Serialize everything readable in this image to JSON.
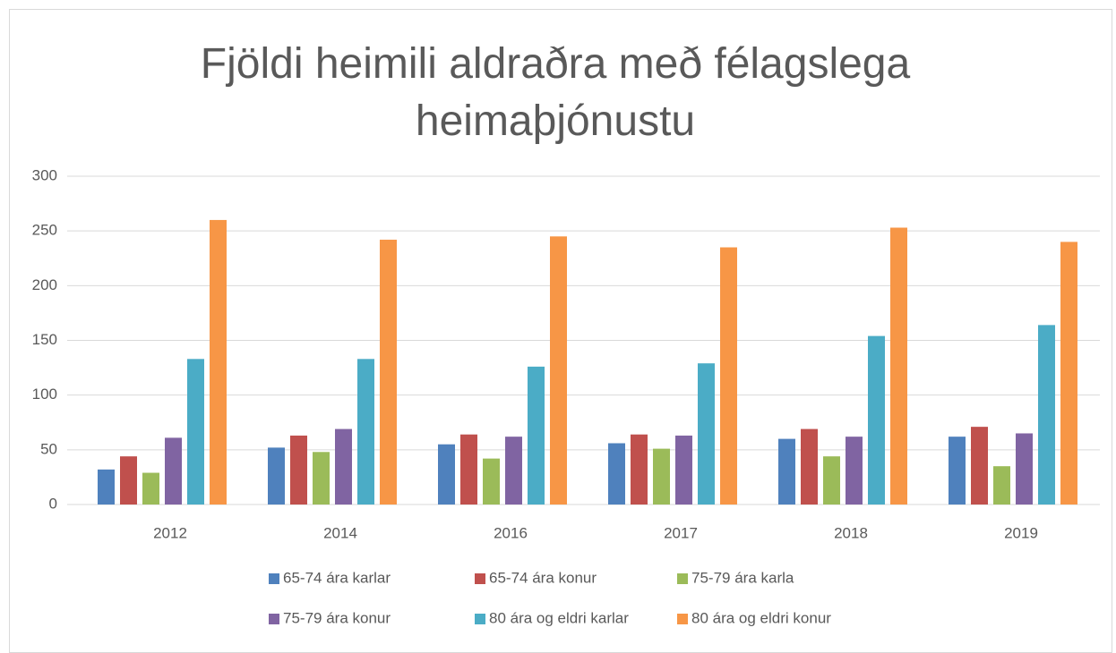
{
  "chart_data": {
    "type": "bar",
    "title": "Fjöldi heimili aldraðra með félagslega heimaþjónustu",
    "categories": [
      "2012",
      "2014",
      "2016",
      "2017",
      "2018",
      "2019"
    ],
    "series": [
      {
        "name": "65-74 ára karlar",
        "color": "#4f81bd",
        "values": [
          32,
          52,
          55,
          56,
          60,
          62
        ]
      },
      {
        "name": "65-74 ára konur",
        "color": "#c0504d",
        "values": [
          44,
          63,
          64,
          64,
          69,
          71
        ]
      },
      {
        "name": "75-79 ára karla",
        "color": "#9bbb59",
        "values": [
          29,
          48,
          42,
          51,
          44,
          35
        ]
      },
      {
        "name": "75-79 ára konur",
        "color": "#8064a2",
        "values": [
          61,
          69,
          62,
          63,
          62,
          65
        ]
      },
      {
        "name": "80 ára og eldri karlar",
        "color": "#4bacc6",
        "values": [
          133,
          133,
          126,
          129,
          154,
          164
        ]
      },
      {
        "name": "80 ára og eldri konur",
        "color": "#f79646",
        "values": [
          260,
          242,
          245,
          235,
          253,
          240
        ]
      }
    ],
    "ylim": [
      0,
      300
    ],
    "yticks": [
      0,
      50,
      100,
      150,
      200,
      250,
      300
    ],
    "grid": true,
    "legend": "bottom"
  }
}
